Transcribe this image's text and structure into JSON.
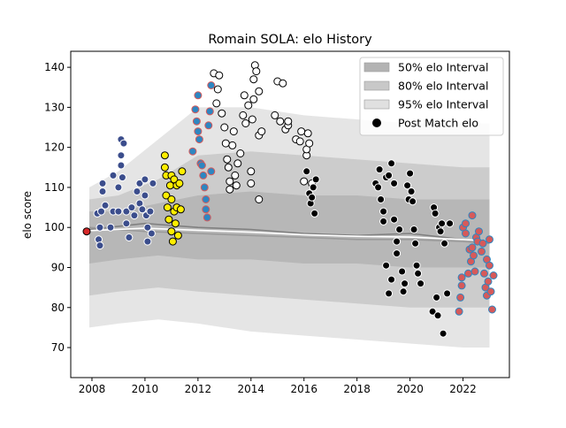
{
  "chart_data": {
    "type": "scatter",
    "title": "Romain SOLA: elo History",
    "xlabel": "",
    "ylabel": "elo score",
    "xlim": [
      2007.2,
      2023.75
    ],
    "ylim": [
      62.5,
      144.0
    ],
    "x_ticks": [
      2008,
      2010,
      2012,
      2014,
      2016,
      2018,
      2020,
      2022
    ],
    "y_ticks": [
      70,
      80,
      90,
      100,
      110,
      120,
      130,
      140
    ],
    "grid": false,
    "legend_position": "top-right",
    "legend": [
      {
        "label": "50% elo Interval",
        "kind": "band",
        "color": "#b3b3b3"
      },
      {
        "label": "80% elo Interval",
        "kind": "band",
        "color": "#c8c8c8"
      },
      {
        "label": "95% elo Interval",
        "kind": "band",
        "color": "#e0e0e0"
      },
      {
        "label": "Post Match elo",
        "kind": "marker",
        "color": "#000000"
      }
    ],
    "bands": {
      "x": [
        2007.9,
        2009,
        2010.5,
        2012,
        2014,
        2016,
        2018,
        2020,
        2022,
        2023.0
      ],
      "p95": {
        "lower": [
          75,
          76,
          77,
          76,
          74,
          73,
          72,
          71,
          70,
          70
        ],
        "upper": [
          110,
          114,
          122,
          130,
          130,
          128,
          127,
          126,
          126,
          126
        ]
      },
      "p80": {
        "lower": [
          83,
          84,
          85,
          84,
          83,
          82,
          81,
          80,
          80,
          80
        ],
        "upper": [
          107,
          108,
          112,
          118,
          119,
          118,
          117,
          116,
          115,
          115
        ]
      },
      "p50": {
        "lower": [
          91,
          92,
          93,
          92,
          92,
          91,
          91,
          90,
          90,
          90
        ],
        "upper": [
          104,
          104,
          106,
          108,
          109,
          108,
          108,
          107,
          107,
          107
        ]
      }
    },
    "lines": [
      {
        "color": "#808080",
        "x": [
          2007.9,
          2010,
          2012,
          2014,
          2016,
          2018,
          2020,
          2022,
          2023.0
        ],
        "y": [
          99.5,
          101,
          100,
          99.5,
          98.5,
          98,
          98.5,
          97,
          96.5
        ]
      },
      {
        "color": "#9a9a9a",
        "x": [
          2007.9,
          2010,
          2012,
          2014,
          2016,
          2018,
          2020,
          2022,
          2023.0
        ],
        "y": [
          100,
          99,
          98.5,
          98,
          97.5,
          97,
          97,
          96.5,
          96
        ]
      },
      {
        "color": "#ffffff",
        "x": [
          2007.9,
          2010,
          2012,
          2014,
          2016,
          2018,
          2020,
          2022,
          2023.0
        ],
        "y": [
          99.2,
          99.8,
          99.3,
          98.8,
          98.2,
          97.8,
          97.6,
          97.0,
          96.6
        ]
      }
    ],
    "series": [
      {
        "fill": "#d62728",
        "edge": "#000000",
        "points": [
          [
            2007.8,
            99
          ]
        ]
      },
      {
        "fill": "#3b4d8c",
        "edge": "#ffffff",
        "points": [
          [
            2008.2,
            103.5
          ],
          [
            2008.25,
            97
          ],
          [
            2008.3,
            100
          ],
          [
            2008.3,
            95.5
          ],
          [
            2008.35,
            104
          ],
          [
            2008.4,
            109
          ],
          [
            2008.4,
            111
          ],
          [
            2008.5,
            105.5
          ],
          [
            2008.7,
            100
          ],
          [
            2008.8,
            104
          ],
          [
            2008.8,
            113
          ],
          [
            2009.0,
            110
          ],
          [
            2009.0,
            104
          ],
          [
            2009.1,
            122
          ],
          [
            2009.1,
            118
          ],
          [
            2009.1,
            115.5
          ],
          [
            2009.15,
            112.5
          ],
          [
            2009.2,
            121
          ],
          [
            2009.3,
            104
          ],
          [
            2009.3,
            101
          ],
          [
            2009.4,
            97.5
          ],
          [
            2009.5,
            105
          ],
          [
            2009.6,
            103
          ],
          [
            2009.7,
            109
          ],
          [
            2009.8,
            111
          ],
          [
            2009.8,
            106
          ],
          [
            2009.9,
            104.5
          ],
          [
            2010.0,
            112
          ],
          [
            2010.0,
            108
          ],
          [
            2010.05,
            103
          ],
          [
            2010.1,
            100
          ],
          [
            2010.1,
            96.5
          ],
          [
            2010.2,
            104
          ],
          [
            2010.25,
            98.5
          ],
          [
            2010.3,
            111
          ]
        ]
      },
      {
        "fill": "#ffee00",
        "edge": "#000000",
        "points": [
          [
            2010.75,
            118
          ],
          [
            2010.75,
            115
          ],
          [
            2010.8,
            113
          ],
          [
            2010.8,
            108
          ],
          [
            2010.85,
            105
          ],
          [
            2010.9,
            102
          ],
          [
            2010.95,
            110.5
          ],
          [
            2011.0,
            113
          ],
          [
            2011.0,
            107
          ],
          [
            2011.0,
            99
          ],
          [
            2011.05,
            96.5
          ],
          [
            2011.1,
            112
          ],
          [
            2011.1,
            104
          ],
          [
            2011.15,
            101
          ],
          [
            2011.2,
            110.5
          ],
          [
            2011.2,
            105
          ],
          [
            2011.25,
            98
          ],
          [
            2011.3,
            111
          ],
          [
            2011.35,
            104.5
          ],
          [
            2011.4,
            114
          ]
        ]
      },
      {
        "fill": "#2e86c1",
        "edge": "#d65a5a",
        "points": [
          [
            2011.8,
            119
          ],
          [
            2011.9,
            129.5
          ],
          [
            2011.95,
            126.5
          ],
          [
            2012.0,
            133
          ],
          [
            2012.0,
            124
          ],
          [
            2012.05,
            122
          ],
          [
            2012.1,
            116
          ],
          [
            2012.15,
            115.5
          ],
          [
            2012.2,
            113
          ],
          [
            2012.25,
            110
          ],
          [
            2012.3,
            107
          ],
          [
            2012.3,
            104.5
          ],
          [
            2012.35,
            102.5
          ],
          [
            2012.4,
            125.5
          ],
          [
            2012.45,
            129
          ],
          [
            2012.5,
            135.5
          ],
          [
            2012.5,
            114
          ]
        ]
      },
      {
        "fill": "#ffffff",
        "edge": "#000000",
        "points": [
          [
            2012.6,
            138.5
          ],
          [
            2012.7,
            131
          ],
          [
            2012.75,
            134.5
          ],
          [
            2012.8,
            138
          ],
          [
            2012.9,
            128.5
          ],
          [
            2013.0,
            125
          ],
          [
            2013.05,
            121
          ],
          [
            2013.1,
            117
          ],
          [
            2013.15,
            115
          ],
          [
            2013.2,
            111.5
          ],
          [
            2013.2,
            109.5
          ],
          [
            2013.3,
            120.5
          ],
          [
            2013.35,
            124
          ],
          [
            2013.4,
            113
          ],
          [
            2013.45,
            110.5
          ],
          [
            2013.5,
            116
          ],
          [
            2013.6,
            118.5
          ],
          [
            2013.7,
            128
          ],
          [
            2013.75,
            133
          ],
          [
            2013.8,
            126
          ],
          [
            2013.9,
            130.5
          ],
          [
            2014.0,
            114
          ],
          [
            2014.0,
            111
          ],
          [
            2014.05,
            127
          ],
          [
            2014.1,
            132
          ],
          [
            2014.1,
            137
          ],
          [
            2014.15,
            140.5
          ],
          [
            2014.2,
            139
          ],
          [
            2014.3,
            134
          ],
          [
            2014.3,
            123
          ],
          [
            2014.3,
            107
          ],
          [
            2014.4,
            124
          ],
          [
            2014.9,
            128
          ],
          [
            2015.0,
            136.5
          ],
          [
            2015.1,
            126.5
          ],
          [
            2015.2,
            136
          ],
          [
            2015.3,
            124.5
          ],
          [
            2015.4,
            125.5
          ],
          [
            2015.4,
            126.5
          ],
          [
            2015.7,
            122
          ],
          [
            2015.85,
            121.5
          ],
          [
            2015.9,
            124
          ],
          [
            2016.0,
            111.5
          ],
          [
            2016.1,
            118
          ],
          [
            2016.1,
            119.5
          ],
          [
            2016.15,
            123.5
          ],
          [
            2016.2,
            121
          ],
          [
            2016.3,
            111
          ]
        ]
      },
      {
        "fill": "#000000",
        "edge": "#ffffff",
        "points": [
          [
            2016.1,
            114
          ],
          [
            2016.2,
            108.5
          ],
          [
            2016.25,
            106
          ],
          [
            2016.3,
            107.5
          ],
          [
            2016.35,
            110
          ],
          [
            2016.4,
            103.5
          ],
          [
            2016.45,
            112
          ],
          [
            2018.7,
            111
          ],
          [
            2018.8,
            110
          ],
          [
            2018.85,
            114.5
          ],
          [
            2018.9,
            107
          ],
          [
            2019.0,
            104
          ],
          [
            2019.0,
            101.5
          ],
          [
            2019.1,
            112.5
          ],
          [
            2019.1,
            90.5
          ],
          [
            2019.2,
            113
          ],
          [
            2019.2,
            83.5
          ],
          [
            2019.3,
            87
          ],
          [
            2019.3,
            116
          ],
          [
            2019.4,
            111
          ],
          [
            2019.4,
            102
          ],
          [
            2019.5,
            96.5
          ],
          [
            2019.5,
            93.5
          ],
          [
            2019.6,
            99.5
          ],
          [
            2019.7,
            89
          ],
          [
            2019.75,
            84
          ],
          [
            2019.8,
            86
          ],
          [
            2019.9,
            110.5
          ],
          [
            2019.95,
            107
          ],
          [
            2020.0,
            113.5
          ],
          [
            2020.05,
            109
          ],
          [
            2020.1,
            106.5
          ],
          [
            2020.15,
            99.5
          ],
          [
            2020.2,
            96
          ],
          [
            2020.25,
            90.5
          ],
          [
            2020.3,
            88.5
          ],
          [
            2020.4,
            86
          ],
          [
            2020.85,
            79
          ],
          [
            2020.9,
            105
          ],
          [
            2020.95,
            103.5
          ],
          [
            2021.0,
            82.5
          ],
          [
            2021.05,
            78
          ],
          [
            2021.1,
            100
          ],
          [
            2021.15,
            99
          ],
          [
            2021.2,
            101
          ],
          [
            2021.25,
            73.5
          ],
          [
            2021.3,
            96
          ],
          [
            2021.4,
            83.5
          ],
          [
            2021.5,
            101
          ]
        ]
      },
      {
        "fill": "#d65a5a",
        "edge": "#2e86c1",
        "points": [
          [
            2021.85,
            79
          ],
          [
            2021.9,
            82.5
          ],
          [
            2021.95,
            85.5
          ],
          [
            2021.95,
            87.5
          ],
          [
            2022.0,
            100
          ],
          [
            2022.1,
            101
          ],
          [
            2022.1,
            98.5
          ],
          [
            2022.2,
            88.5
          ],
          [
            2022.25,
            94.5
          ],
          [
            2022.3,
            91.5
          ],
          [
            2022.35,
            103
          ],
          [
            2022.35,
            95
          ],
          [
            2022.4,
            93
          ],
          [
            2022.45,
            89
          ],
          [
            2022.5,
            97.5
          ],
          [
            2022.55,
            96.5
          ],
          [
            2022.6,
            99
          ],
          [
            2022.7,
            94
          ],
          [
            2022.75,
            96
          ],
          [
            2022.8,
            88.5
          ],
          [
            2022.85,
            85
          ],
          [
            2022.9,
            92
          ],
          [
            2022.9,
            83
          ],
          [
            2022.95,
            86.5
          ],
          [
            2023.0,
            90.5
          ],
          [
            2023.0,
            97
          ],
          [
            2023.05,
            84
          ],
          [
            2023.1,
            79.5
          ],
          [
            2023.15,
            88
          ]
        ]
      }
    ]
  }
}
